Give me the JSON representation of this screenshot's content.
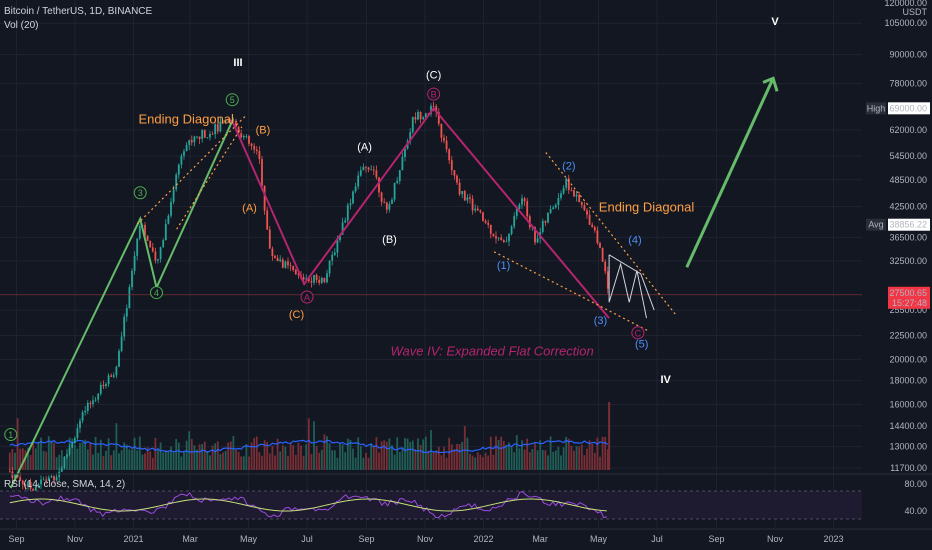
{
  "header": {
    "symbol_line": "Bitcoin / TetherUS, 1D, BINANCE",
    "vol_label": "Vol (20)",
    "rsi_label": "RSI (14, close, SMA, 14, 2)"
  },
  "price_axis": {
    "currency": "USDT",
    "top_value": "120000.00"
  },
  "chart_data": {
    "type": "line",
    "price_ticks": [
      "105000.00",
      "90000.00",
      "78000.00",
      "62000.00",
      "54500.00",
      "48500.00",
      "42500.00",
      "36500.00",
      "32500.00",
      "25500.00",
      "22500.00",
      "20000.00",
      "18000.00",
      "16000.00",
      "14400.00",
      "13000.00",
      "11700.00"
    ],
    "time_ticks": [
      "Sep",
      "Nov",
      "2021",
      "Mar",
      "May",
      "Jul",
      "Sep",
      "Nov",
      "2022",
      "Mar",
      "May",
      "Jul",
      "Sep",
      "Nov",
      "2023"
    ],
    "rsi_ticks": [
      "80.00",
      "40.00"
    ],
    "badges": {
      "high_label": "High",
      "high_value": "69000.00",
      "avg_label": "Avg",
      "avg_value": "38856.22",
      "last_price": "27500.65",
      "countdown": "15:27:48"
    },
    "price_line": [
      {
        "t": "2020-08-25",
        "p": 11500
      },
      {
        "t": "2020-09-15",
        "p": 10600
      },
      {
        "t": "2020-10-15",
        "p": 11400
      },
      {
        "t": "2020-11-10",
        "p": 15300
      },
      {
        "t": "2020-12-15",
        "p": 19400
      },
      {
        "t": "2021-01-08",
        "p": 40000
      },
      {
        "t": "2021-01-25",
        "p": 31500
      },
      {
        "t": "2021-02-21",
        "p": 57000
      },
      {
        "t": "2021-03-13",
        "p": 60500
      },
      {
        "t": "2021-04-14",
        "p": 64800
      },
      {
        "t": "2021-05-12",
        "p": 54000
      },
      {
        "t": "2021-05-23",
        "p": 34000
      },
      {
        "t": "2021-06-22",
        "p": 30000
      },
      {
        "t": "2021-07-20",
        "p": 29800
      },
      {
        "t": "2021-08-23",
        "p": 49500
      },
      {
        "t": "2021-09-07",
        "p": 52500
      },
      {
        "t": "2021-09-22",
        "p": 40800
      },
      {
        "t": "2021-10-20",
        "p": 66000
      },
      {
        "t": "2021-11-10",
        "p": 69000
      },
      {
        "t": "2021-12-04",
        "p": 47000
      },
      {
        "t": "2022-01-22",
        "p": 35000
      },
      {
        "t": "2022-02-10",
        "p": 44500
      },
      {
        "t": "2022-02-24",
        "p": 36000
      },
      {
        "t": "2022-03-28",
        "p": 48000
      },
      {
        "t": "2022-04-26",
        "p": 38500
      },
      {
        "t": "2022-05-09",
        "p": 30500
      },
      {
        "t": "2022-05-12",
        "p": 27500
      }
    ],
    "annotations": [
      {
        "text": "III",
        "t": "2021-04-20",
        "p": 85000,
        "color": "#ffffff"
      },
      {
        "text": "Ending Diagonal",
        "t": "2021-02-25",
        "p": 64000,
        "color": "#ff9f43"
      },
      {
        "text": "(B)",
        "t": "2021-05-16",
        "p": 61000,
        "color": "#ff9f43"
      },
      {
        "text": "(A)",
        "t": "2021-05-02",
        "p": 41500,
        "color": "#ff9f43"
      },
      {
        "text": "(C)",
        "t": "2021-06-20",
        "p": 24500,
        "color": "#ff9f43"
      },
      {
        "text": "(A)",
        "t": "2021-08-30",
        "p": 56000,
        "color": "#ffffff"
      },
      {
        "text": "(B)",
        "t": "2021-09-25",
        "p": 35500,
        "color": "#ffffff"
      },
      {
        "text": "(C)",
        "t": "2021-11-10",
        "p": 80000,
        "color": "#ffffff"
      },
      {
        "text": "(1)",
        "t": "2022-01-22",
        "p": 31200,
        "color": "#4f8ff7"
      },
      {
        "text": "(2)",
        "t": "2022-03-31",
        "p": 51000,
        "color": "#4f8ff7"
      },
      {
        "text": "Ending Diagonal",
        "t": "2022-06-20",
        "p": 41500,
        "color": "#ff9f43"
      },
      {
        "text": "(4)",
        "t": "2022-06-08",
        "p": 35400,
        "color": "#4f8ff7"
      },
      {
        "text": "(3)",
        "t": "2022-05-03",
        "p": 23800,
        "color": "#4f8ff7"
      },
      {
        "text": "(5)",
        "t": "2022-06-15",
        "p": 21200,
        "color": "#4f8ff7"
      },
      {
        "text": "Wave IV: Expanded Flat Correction",
        "t": "2022-01-10",
        "p": 20400,
        "color": "#b5246f"
      },
      {
        "text": "IV",
        "t": "2022-07-10",
        "p": 17800,
        "color": "#ffffff"
      },
      {
        "text": "V",
        "t": "2022-11-01",
        "p": 104000,
        "color": "#ffffff"
      }
    ],
    "circled_labels": [
      {
        "text": "1",
        "t": "2020-08-26",
        "p": 13800,
        "color": "#4caf50"
      },
      {
        "text": "3",
        "t": "2021-01-08",
        "p": 45500,
        "color": "#4caf50"
      },
      {
        "text": "4",
        "t": "2021-01-25",
        "p": 27800,
        "color": "#4caf50"
      },
      {
        "text": "5",
        "t": "2021-04-14",
        "p": 72000,
        "color": "#4caf50"
      },
      {
        "text": "A",
        "t": "2021-07-01",
        "p": 27200,
        "color": "#b5246f"
      },
      {
        "text": "B",
        "t": "2021-11-10",
        "p": 74000,
        "color": "#b5246f"
      },
      {
        "text": "C",
        "t": "2022-06-11",
        "p": 22800,
        "color": "#b5246f"
      }
    ],
    "grid": true
  },
  "colors": {
    "background": "#131722",
    "impulse_line": "#66bb6a",
    "correction_line": "#b5246f",
    "diagonal_line": "#ff9f43",
    "wave_blue": "#4f8ff7",
    "volume_ma": "#2962ff",
    "rsi_line": "#c5e17a",
    "rsi_ma": "#9c4ce0",
    "last_price_badge": "#f23645"
  }
}
